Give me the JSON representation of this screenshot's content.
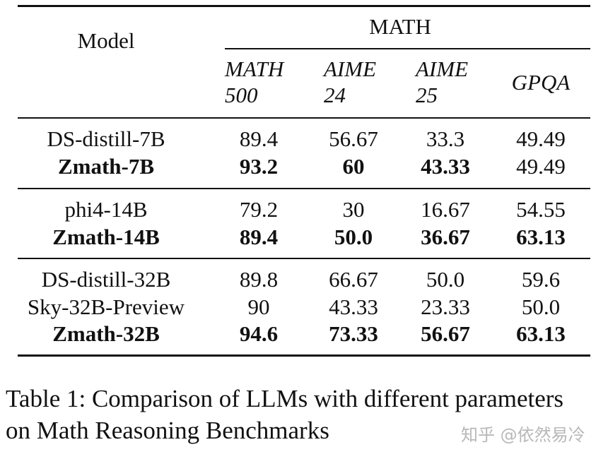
{
  "table": {
    "header": {
      "model": "Model",
      "group": "MATH",
      "columns": [
        [
          "MATH",
          "500"
        ],
        [
          "AIME",
          "24"
        ],
        [
          "AIME",
          "25"
        ],
        [
          "GPQA"
        ]
      ]
    },
    "groups": [
      [
        {
          "model": "DS-distill-7B",
          "values": [
            "89.4",
            "56.67",
            "33.3",
            "49.49"
          ],
          "bold": [
            false,
            false,
            false,
            false,
            false
          ]
        },
        {
          "model": "Zmath-7B",
          "values": [
            "93.2",
            "60",
            "43.33",
            "49.49"
          ],
          "bold": [
            true,
            true,
            true,
            true,
            false
          ]
        }
      ],
      [
        {
          "model": "phi4-14B",
          "values": [
            "79.2",
            "30",
            "16.67",
            "54.55"
          ],
          "bold": [
            false,
            false,
            false,
            false,
            false
          ]
        },
        {
          "model": "Zmath-14B",
          "values": [
            "89.4",
            "50.0",
            "36.67",
            "63.13"
          ],
          "bold": [
            true,
            true,
            true,
            true,
            true
          ]
        }
      ],
      [
        {
          "model": "DS-distill-32B",
          "values": [
            "89.8",
            "66.67",
            "50.0",
            "59.6"
          ],
          "bold": [
            false,
            false,
            false,
            false,
            false
          ]
        },
        {
          "model": "Sky-32B-Preview",
          "values": [
            "90",
            "43.33",
            "23.33",
            "50.0"
          ],
          "bold": [
            false,
            false,
            false,
            false,
            false
          ]
        },
        {
          "model": "Zmath-32B",
          "values": [
            "94.6",
            "73.33",
            "56.67",
            "63.13"
          ],
          "bold": [
            true,
            true,
            true,
            true,
            true
          ]
        }
      ]
    ]
  },
  "caption": {
    "line1": "Table 1: Comparison of LLMs with different parameters",
    "line2": "on Math Reasoning Benchmarks"
  },
  "watermark": "知乎 @依然易冷"
}
